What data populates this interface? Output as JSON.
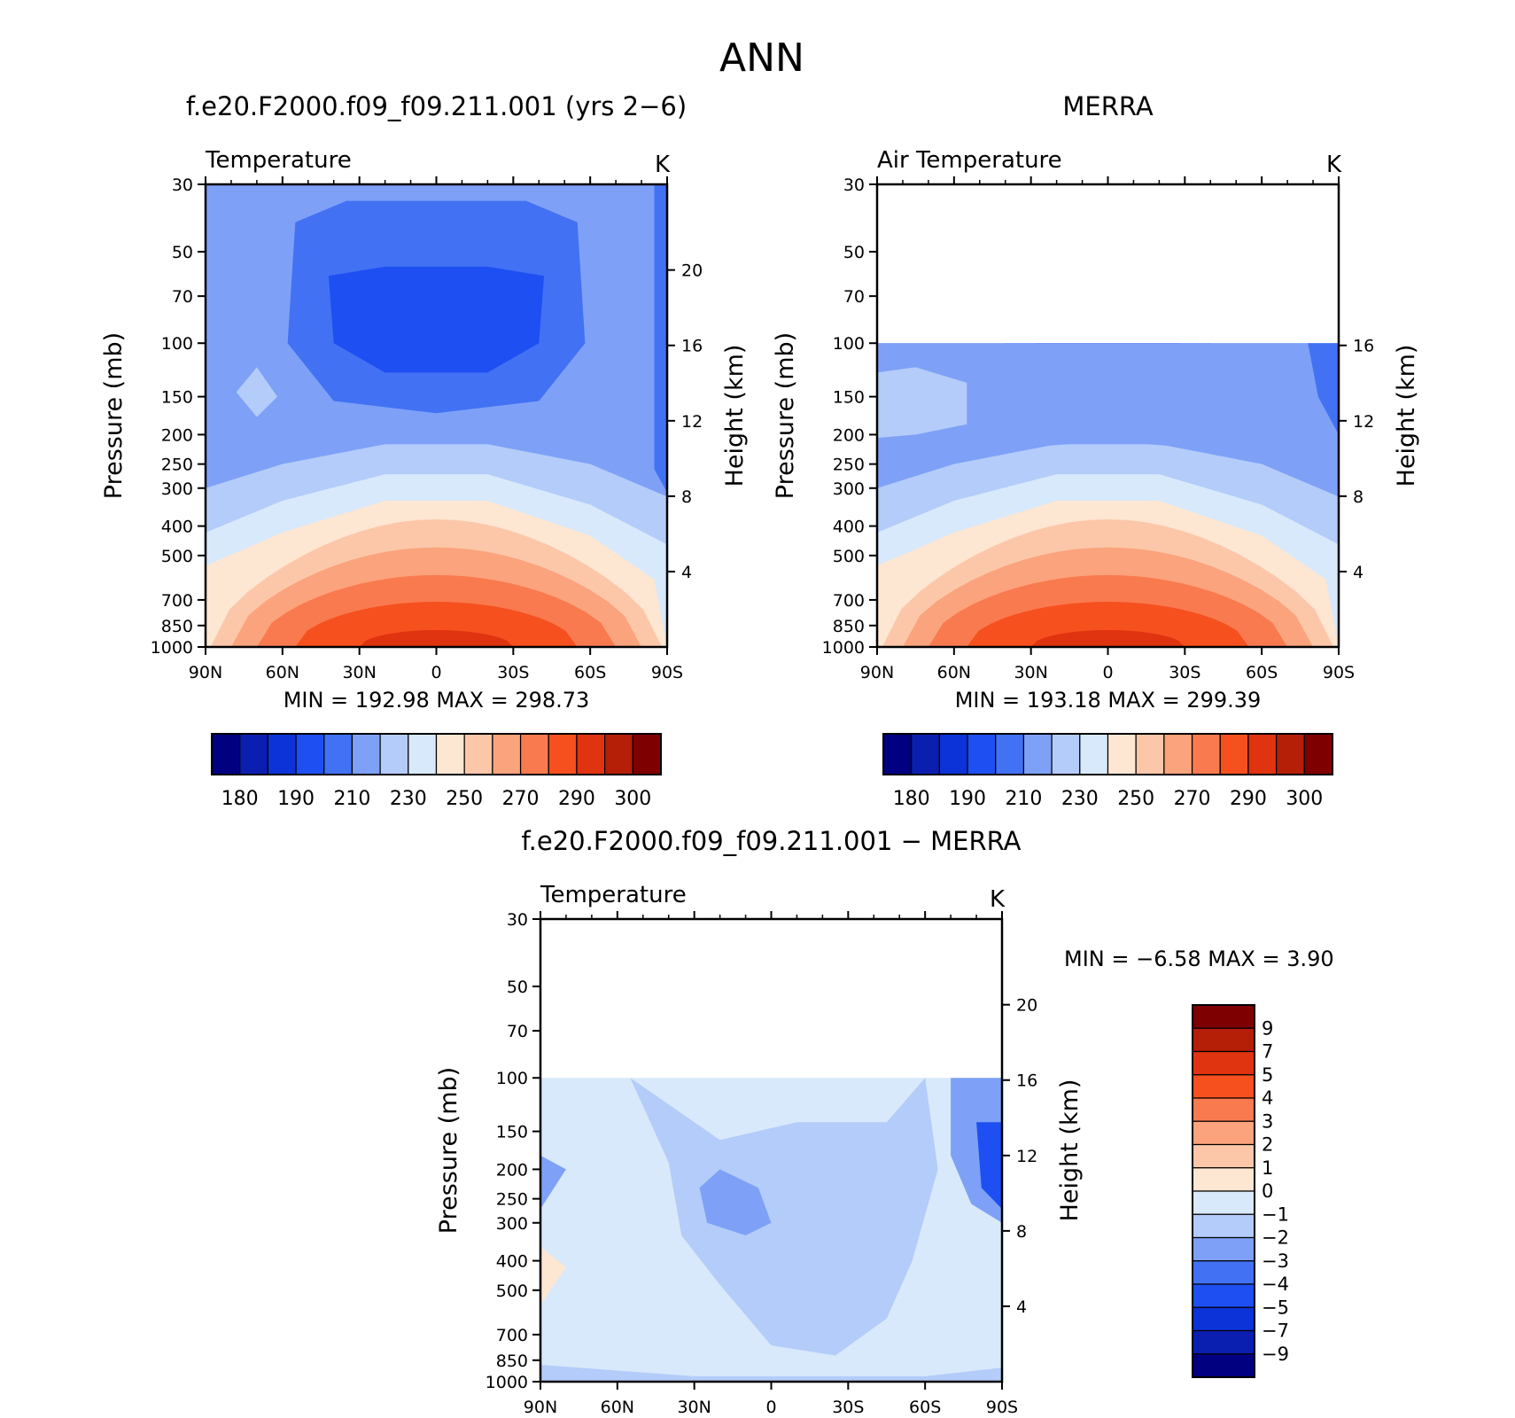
{
  "figure_title": "ANN",
  "chart_data": [
    {
      "type": "heatmap",
      "title": "f.e20.F2000.f09_f09.211.001 (yrs 2−6)",
      "variable_label": "Temperature",
      "units": "K",
      "ylabel": "Pressure (mb)",
      "ylabel_right": "Height (km)",
      "x_ticks": [
        "90N",
        "60N",
        "30N",
        "0",
        "30S",
        "60S",
        "90S"
      ],
      "xlim": [
        90,
        -90
      ],
      "y_ticks": [
        30,
        50,
        70,
        100,
        150,
        200,
        250,
        300,
        400,
        500,
        700,
        850,
        1000
      ],
      "ylim": [
        30,
        1000
      ],
      "y_scale": "log",
      "height_ticks": [
        4,
        8,
        12,
        16,
        20
      ],
      "data_top_pressure": 30,
      "stats_label": "MIN = 192.98   MAX = 298.73",
      "min": 192.98,
      "max": 298.73,
      "colorbar_labels": [
        "180",
        "190",
        "210",
        "230",
        "250",
        "270",
        "290",
        "300"
      ],
      "legend_position": "bottom"
    },
    {
      "type": "heatmap",
      "title": "MERRA",
      "variable_label": "Air Temperature",
      "units": "K",
      "ylabel": "Pressure (mb)",
      "ylabel_right": "Height (km)",
      "x_ticks": [
        "90N",
        "60N",
        "30N",
        "0",
        "30S",
        "60S",
        "90S"
      ],
      "xlim": [
        90,
        -90
      ],
      "y_ticks": [
        30,
        50,
        70,
        100,
        150,
        200,
        250,
        300,
        400,
        500,
        700,
        850,
        1000
      ],
      "ylim": [
        30,
        1000
      ],
      "y_scale": "log",
      "height_ticks": [
        4,
        8,
        12,
        16
      ],
      "data_top_pressure": 100,
      "stats_label": "MIN = 193.18   MAX = 299.39",
      "min": 193.18,
      "max": 299.39,
      "colorbar_labels": [
        "180",
        "190",
        "210",
        "230",
        "250",
        "270",
        "290",
        "300"
      ],
      "legend_position": "bottom"
    },
    {
      "type": "heatmap",
      "title": "f.e20.F2000.f09_f09.211.001 − MERRA",
      "variable_label": "Temperature",
      "units": "K",
      "ylabel": "Pressure (mb)",
      "ylabel_right": "Height (km)",
      "x_ticks": [
        "90N",
        "60N",
        "30N",
        "0",
        "30S",
        "60S",
        "90S"
      ],
      "xlim": [
        90,
        -90
      ],
      "y_ticks": [
        30,
        50,
        70,
        100,
        150,
        200,
        250,
        300,
        400,
        500,
        700,
        850,
        1000
      ],
      "ylim": [
        30,
        1000
      ],
      "y_scale": "log",
      "height_ticks": [
        4,
        8,
        12,
        16,
        20
      ],
      "data_top_pressure": 100,
      "stats_label": "MIN =   −6.58   MAX =     3.90",
      "min": -6.58,
      "max": 3.9,
      "colorbar_labels": [
        "9",
        "7",
        "5",
        "4",
        "3",
        "2",
        "1",
        "0",
        "−1",
        "−2",
        "−3",
        "−4",
        "−5",
        "−7",
        "−9"
      ],
      "legend_position": "right"
    }
  ],
  "colors": {
    "abs_scale": [
      "#000080",
      "#0a1fb0",
      "#0b33d8",
      "#1d4ff2",
      "#4272f3",
      "#7ea1f7",
      "#b4ccf9",
      "#d8e9fb",
      "#fde6d2",
      "#fcc7a9",
      "#fba37c",
      "#f97a4f",
      "#f6501f",
      "#e0330f",
      "#b51e07",
      "#7f0000"
    ],
    "diff_scale": [
      "#7f0000",
      "#b51e07",
      "#e0330f",
      "#f6501f",
      "#f97a4f",
      "#fba37c",
      "#fcc7a9",
      "#fde6d2",
      "#d8e9fb",
      "#b4ccf9",
      "#7ea1f7",
      "#4272f3",
      "#1d4ff2",
      "#0b33d8",
      "#0a1fb0",
      "#000080"
    ]
  }
}
